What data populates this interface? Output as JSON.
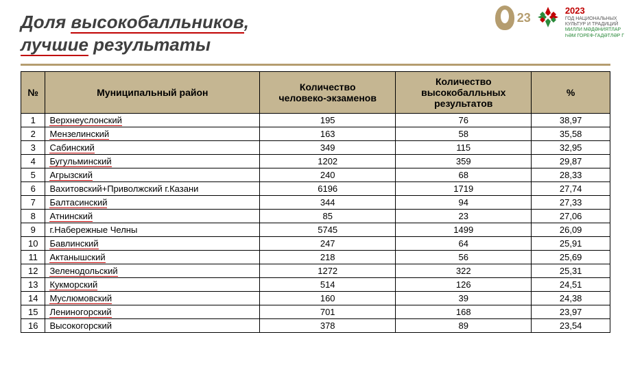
{
  "title": {
    "line1_pre": "Доля ",
    "line1_u": "высокобалльников",
    "line1_post": ",",
    "line2_u": "лучшие",
    "line2_post": " результаты"
  },
  "logos": {
    "year_left": "23",
    "year_right": "2023",
    "right_line1": "ГОД НАЦИОНАЛЬНЫХ",
    "right_line2": "КУЛЬТУР И ТРАДИЦИЙ",
    "right_line3": "МИЛЛИ МӘДӘНИЯТЛАР",
    "right_line4": "ҺӘМ ГОРЕФ-ГАДӘТЛӘР Г"
  },
  "columns": {
    "num": "№",
    "name": "Муниципальный район",
    "exams": "Количество\nчеловеко-экзаменов",
    "high": "Количество\nвысокобалльных\nрезультатов",
    "pct": "%"
  },
  "style": {
    "header_bg": "#c5b692",
    "accent_line": "#b59d6f",
    "title_color": "#3f3f3f",
    "underline_color": "#c00000",
    "border_color": "#000000",
    "font_size_body": 13,
    "font_size_header": 14,
    "font_size_title": 26
  },
  "rows": [
    {
      "n": "1",
      "name": "Верхнеуслонский",
      "exams": "195",
      "high": "76",
      "pct": "38,97",
      "u": true
    },
    {
      "n": "2",
      "name": "Мензелинский",
      "exams": "163",
      "high": "58",
      "pct": "35,58",
      "u": true
    },
    {
      "n": "3",
      "name": "Сабинский",
      "exams": "349",
      "high": "115",
      "pct": "32,95",
      "u": true
    },
    {
      "n": "4",
      "name": "Бугульминский",
      "exams": "1202",
      "high": "359",
      "pct": "29,87",
      "u": true
    },
    {
      "n": "5",
      "name": "Агрызский",
      "exams": "240",
      "high": "68",
      "pct": "28,33",
      "u": true
    },
    {
      "n": "6",
      "name": "Вахитовский+Приволжский г.Казани",
      "exams": "6196",
      "high": "1719",
      "pct": "27,74",
      "u": false
    },
    {
      "n": "7",
      "name": "Балтасинский",
      "exams": "344",
      "high": "94",
      "pct": "27,33",
      "u": true
    },
    {
      "n": "8",
      "name": "Атнинский",
      "exams": "85",
      "high": "23",
      "pct": "27,06",
      "u": true
    },
    {
      "n": "9",
      "name": "г.Набережные Челны",
      "exams": "5745",
      "high": "1499",
      "pct": "26,09",
      "u": false
    },
    {
      "n": "10",
      "name": "Бавлинский",
      "exams": "247",
      "high": "64",
      "pct": "25,91",
      "u": true
    },
    {
      "n": "11",
      "name": "Актанышский",
      "exams": "218",
      "high": "56",
      "pct": "25,69",
      "u": true
    },
    {
      "n": "12",
      "name": "Зеленодольский",
      "exams": "1272",
      "high": "322",
      "pct": "25,31",
      "u": true
    },
    {
      "n": "13",
      "name": "Кукморский",
      "exams": "514",
      "high": "126",
      "pct": "24,51",
      "u": true
    },
    {
      "n": "14",
      "name": "Муслюмовский",
      "exams": "160",
      "high": "39",
      "pct": "24,38",
      "u": true
    },
    {
      "n": "15",
      "name": "Лениногорский",
      "exams": "701",
      "high": "168",
      "pct": "23,97",
      "u": true
    },
    {
      "n": "16",
      "name": "Высокогорский",
      "exams": "378",
      "high": "89",
      "pct": "23,54",
      "u": false
    }
  ]
}
